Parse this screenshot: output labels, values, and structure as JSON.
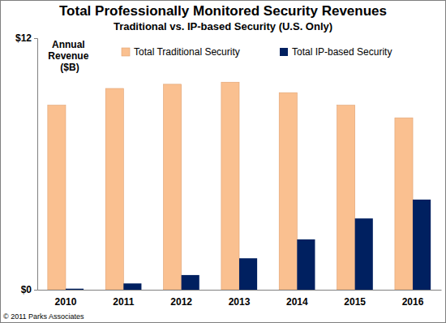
{
  "chart_data": {
    "type": "bar",
    "title": "Total Professionally Monitored Security Revenues",
    "subtitle": "Traditional vs. IP-based Security (U.S. Only)",
    "y_label": "Annual Revenue ($B)",
    "categories": [
      "2010",
      "2011",
      "2012",
      "2013",
      "2014",
      "2015",
      "2016"
    ],
    "series": [
      {
        "name": "Total Traditional Security",
        "color": "#fac090",
        "values": [
          8.8,
          9.6,
          9.8,
          9.9,
          9.4,
          8.8,
          8.2
        ]
      },
      {
        "name": "Total IP-based Security",
        "color": "#002060",
        "values": [
          0.05,
          0.3,
          0.7,
          1.5,
          2.4,
          3.4,
          4.3
        ]
      }
    ],
    "ylim": [
      0,
      12
    ],
    "yticks": [
      {
        "value": 0,
        "label": "$0"
      },
      {
        "value": 12,
        "label": "$12"
      }
    ],
    "grid": false,
    "legend": "top",
    "annotations": [
      "© 2011 Parks Associates"
    ]
  }
}
